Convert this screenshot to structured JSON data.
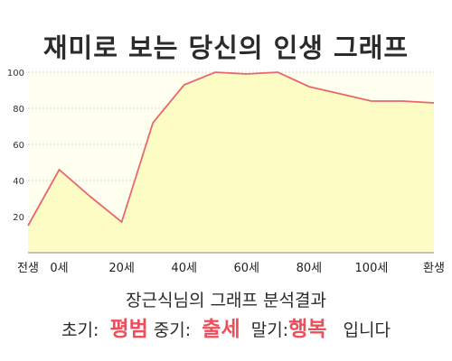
{
  "chart_data": {
    "type": "area",
    "title": "재미로 보는 당신의 인생 그래프",
    "categories": [
      "전생",
      "0세",
      "20세",
      "40세",
      "60세",
      "80세",
      "100세",
      "환생"
    ],
    "x": [
      "전생",
      "0세",
      "",
      "20세",
      "",
      "40세",
      "",
      "60세",
      "",
      "80세",
      "",
      "100세",
      "",
      "환생"
    ],
    "values": [
      15,
      46,
      31,
      17,
      72,
      93,
      100,
      99,
      100,
      92,
      88,
      84,
      84,
      83
    ],
    "ylim": [
      0,
      100
    ],
    "yticks": [
      20,
      40,
      60,
      80,
      100
    ],
    "grid": true,
    "colors": {
      "line": "#e8676e",
      "fill": "#fdfcc4",
      "bg": "#fffff0",
      "grid": "#d9d9d9"
    }
  },
  "result": {
    "title": "장근식님의 그래프 분석결과",
    "early_label": "초기:",
    "early_value": "평범",
    "mid_label": "중기:",
    "mid_value": "출세",
    "late_label": "말기:",
    "late_value": "행복",
    "ending": "입니다"
  }
}
